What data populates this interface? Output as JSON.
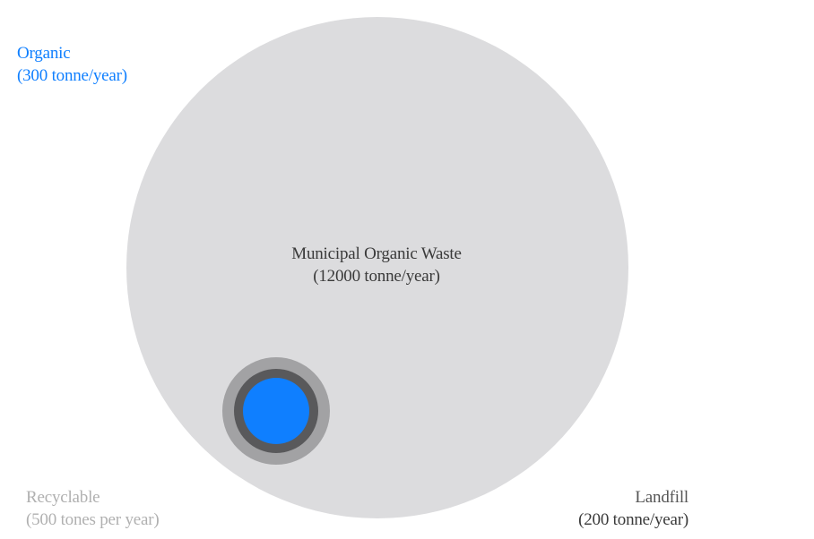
{
  "colors": {
    "background": "#ffffff",
    "main_circle": "#dcdcde",
    "outer_ring": "#a2a2a4",
    "inner_ring": "#59595b",
    "organic": "#0f7fff",
    "recyclable_text": "#b0b0b0",
    "dark_text": "#3a3a3a",
    "landfill_text": "#555555"
  },
  "nodes": {
    "main": {
      "name": "Municipal Organic Waste",
      "amount": "(12000 tonne/year)"
    },
    "organic": {
      "name": "Organic",
      "amount": "(300 tonne/year)"
    },
    "recyclable": {
      "name": "Recyclable",
      "amount": "(500 tones per year)"
    },
    "landfill": {
      "name": "Landfill",
      "amount": "(200 tonne/year)"
    }
  }
}
